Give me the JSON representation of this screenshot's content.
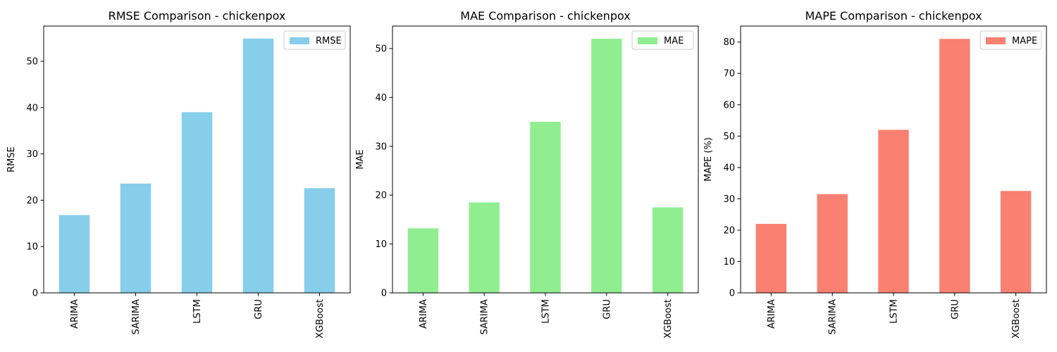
{
  "chart_data": [
    {
      "type": "bar",
      "title": "RMSE Comparison - chickenpox",
      "xlabel": "",
      "ylabel": "RMSE",
      "categories": [
        "ARIMA",
        "SARIMA",
        "LSTM",
        "GRU",
        "XGBoost"
      ],
      "series": [
        {
          "name": "RMSE",
          "values": [
            16.8,
            23.6,
            39.0,
            54.9,
            22.6
          ],
          "color": "#87CEEB"
        }
      ],
      "ylim": [
        0,
        57.6
      ],
      "yticks": [
        0,
        10,
        20,
        30,
        40,
        50
      ],
      "grid": false,
      "legend_position": "top-right"
    },
    {
      "type": "bar",
      "title": "MAE Comparison - chickenpox",
      "xlabel": "",
      "ylabel": "MAE",
      "categories": [
        "ARIMA",
        "SARIMA",
        "LSTM",
        "GRU",
        "XGBoost"
      ],
      "series": [
        {
          "name": "MAE",
          "values": [
            13.2,
            18.5,
            35.0,
            52.0,
            17.5
          ],
          "color": "#90EE90"
        }
      ],
      "ylim": [
        0,
        54.6
      ],
      "yticks": [
        0,
        10,
        20,
        30,
        40,
        50
      ],
      "grid": false,
      "legend_position": "top-right"
    },
    {
      "type": "bar",
      "title": "MAPE Comparison - chickenpox",
      "xlabel": "",
      "ylabel": "MAPE (%)",
      "categories": [
        "ARIMA",
        "SARIMA",
        "LSTM",
        "GRU",
        "XGBoost"
      ],
      "series": [
        {
          "name": "MAPE",
          "values": [
            22.0,
            31.5,
            52.0,
            81.0,
            32.5
          ],
          "color": "#FA8072"
        }
      ],
      "ylim": [
        0,
        85.1
      ],
      "yticks": [
        0,
        10,
        20,
        30,
        40,
        50,
        60,
        70,
        80
      ],
      "grid": false,
      "legend_position": "top-right"
    }
  ]
}
